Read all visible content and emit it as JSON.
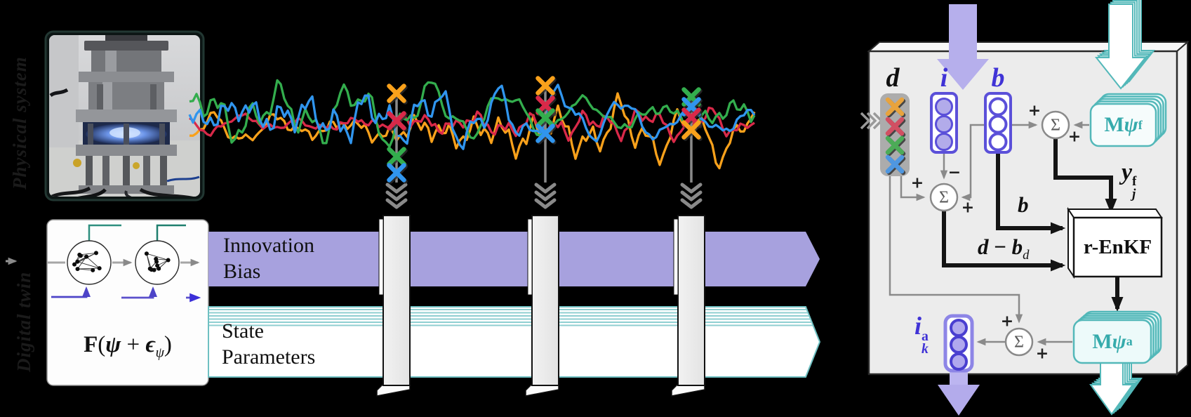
{
  "left": {
    "physical_label": "Physical system",
    "digital_label": "Digital twin",
    "formula": {
      "f": "F",
      "open": "(",
      "psi": "ψ",
      "plus": "+",
      "eps": "ϵ",
      "sub": "ψ",
      "close": ")"
    }
  },
  "bands": {
    "innovation": "Innovation",
    "bias": "Bias",
    "state": "State",
    "parameters": "Parameters",
    "purple_fill": "#a7a1de",
    "teal_edge": "#6fc0c2"
  },
  "chart_data": {
    "type": "line",
    "title": "",
    "xlabel": "",
    "ylabel": "",
    "description": "Four noisy sensor time series measured on the physical system; cross markers show the observation vector d sampled at three assimilation times and passed down to the digital twin",
    "x_range": [
      270,
      1075
    ],
    "grid": false,
    "legend": "none",
    "series": [
      {
        "name": "sensor-orange",
        "color": "#F9A11B",
        "center": 188,
        "amp": [
          24,
          15,
          9
        ],
        "period": [
          97,
          41,
          17
        ]
      },
      {
        "name": "sensor-red",
        "color": "#D92949",
        "center": 176,
        "amp": [
          12,
          8,
          5
        ],
        "period": [
          83,
          37,
          15
        ]
      },
      {
        "name": "sensor-green",
        "color": "#33AD4D",
        "center": 163,
        "amp": [
          27,
          16,
          9
        ],
        "period": [
          109,
          43,
          19
        ]
      },
      {
        "name": "sensor-blue",
        "color": "#3095EE",
        "center": 168,
        "amp": [
          23,
          15,
          9
        ],
        "period": [
          91,
          39,
          16
        ]
      }
    ],
    "sample_columns": [
      {
        "x": 565,
        "markers": [
          {
            "series": 0,
            "y": 133
          },
          {
            "series": 1,
            "y": 172
          },
          {
            "series": 2,
            "y": 223
          },
          {
            "series": 3,
            "y": 246
          }
        ]
      },
      {
        "x": 777,
        "markers": [
          {
            "series": 0,
            "y": 122
          },
          {
            "series": 1,
            "y": 150
          },
          {
            "series": 2,
            "y": 168
          },
          {
            "series": 3,
            "y": 190
          }
        ]
      },
      {
        "x": 985,
        "markers": [
          {
            "series": 2,
            "y": 138
          },
          {
            "series": 3,
            "y": 152
          },
          {
            "series": 1,
            "y": 167
          },
          {
            "series": 0,
            "y": 185
          }
        ]
      }
    ],
    "d_vector_marker_colors": [
      "#E8A33D",
      "#D14F62",
      "#4CAB57",
      "#4F97E0"
    ]
  },
  "panel": {
    "d_label": "d",
    "i_label": "i",
    "b_label": "b",
    "mpsi_f": {
      "m": "M",
      "psi": "ψ",
      "sup": "f"
    },
    "mpsi_a": {
      "m": "M",
      "psi": "ψ",
      "sup": "a"
    },
    "yjf": {
      "y": "y",
      "sup": "f",
      "sub": "j"
    },
    "b_line_label": "b",
    "dbd": {
      "d": "d",
      "minus": "−",
      "b": "b",
      "sub": "d"
    },
    "renkf": "r-EnKF",
    "ika": {
      "i": "i",
      "sup": "a",
      "sub": "k"
    },
    "sigma": "Σ",
    "plus": "+",
    "minus": "−"
  },
  "colors": {
    "panel_fill": "#ececec",
    "purple_strong": "#5b50d9",
    "purple_arrow": "#b6afec",
    "teal": "#53b8b9",
    "teal_card_fill": "#eefafa",
    "gray_line": "#8a8a8a"
  }
}
